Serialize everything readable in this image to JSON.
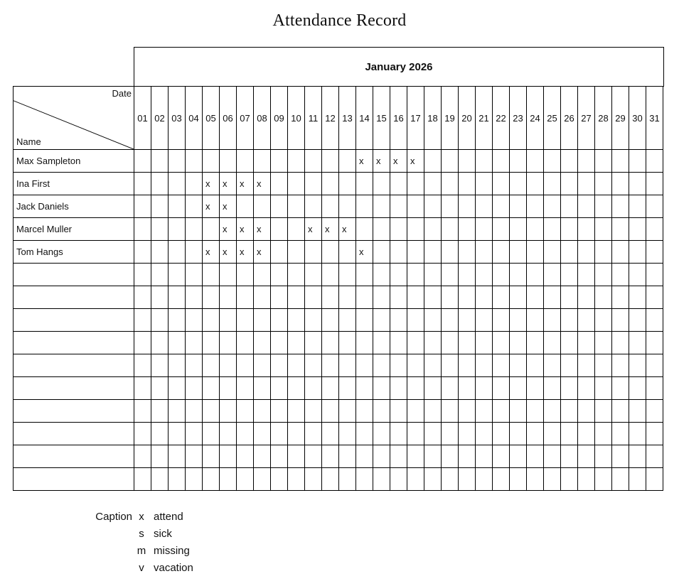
{
  "title": "Attendance Record",
  "calendar": {
    "month_header": "January 2026",
    "corner": {
      "date_label": "Date",
      "name_label": "Name"
    },
    "days": [
      "01",
      "02",
      "03",
      "04",
      "05",
      "06",
      "07",
      "08",
      "09",
      "10",
      "11",
      "12",
      "13",
      "14",
      "15",
      "16",
      "17",
      "18",
      "19",
      "20",
      "21",
      "22",
      "23",
      "24",
      "25",
      "26",
      "27",
      "28",
      "29",
      "30",
      "31"
    ],
    "rows": [
      {
        "name": "Max Sampleton",
        "marks": {
          "14": "x",
          "15": "x",
          "16": "x",
          "17": "x"
        }
      },
      {
        "name": "Ina First",
        "marks": {
          "05": "x",
          "06": "x",
          "07": "x",
          "08": "x"
        }
      },
      {
        "name": "Jack Daniels",
        "marks": {
          "05": "x",
          "06": "x"
        }
      },
      {
        "name": "Marcel Muller",
        "marks": {
          "06": "x",
          "07": "x",
          "08": "x",
          "11": "x",
          "12": "x",
          "13": "x"
        }
      },
      {
        "name": "Tom Hangs",
        "marks": {
          "05": "x",
          "06": "x",
          "07": "x",
          "08": "x",
          "14": "x"
        }
      },
      {
        "name": "",
        "marks": {}
      },
      {
        "name": "",
        "marks": {}
      },
      {
        "name": "",
        "marks": {}
      },
      {
        "name": "",
        "marks": {}
      },
      {
        "name": "",
        "marks": {}
      },
      {
        "name": "",
        "marks": {}
      },
      {
        "name": "",
        "marks": {}
      },
      {
        "name": "",
        "marks": {}
      },
      {
        "name": "",
        "marks": {}
      },
      {
        "name": "",
        "marks": {}
      }
    ]
  },
  "caption": {
    "label": "Caption",
    "entries": [
      {
        "symbol": "x",
        "meaning": "attend"
      },
      {
        "symbol": "s",
        "meaning": "sick"
      },
      {
        "symbol": "m",
        "meaning": "missing"
      },
      {
        "symbol": "v",
        "meaning": "vacation"
      }
    ]
  },
  "colors": {
    "grid_line": "#000000",
    "text": "#111111",
    "background": "#ffffff"
  }
}
